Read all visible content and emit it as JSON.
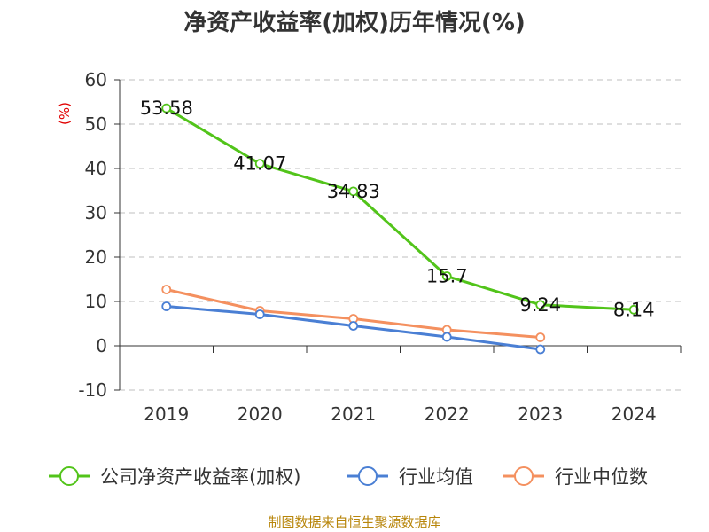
{
  "chart_data": {
    "type": "line",
    "title": "净资产收益率(加权)历年情况(%)",
    "ylabel": "(%)",
    "xlabel": "",
    "categories": [
      "2019",
      "2020",
      "2021",
      "2022",
      "2023",
      "2024"
    ],
    "ylim": [
      -10,
      60
    ],
    "yticks": [
      -10,
      0,
      10,
      20,
      30,
      40,
      50,
      60
    ],
    "grid": true,
    "legend_position": "bottom",
    "series": [
      {
        "name": "公司净资产收益率(加权)",
        "color": "#52c41a",
        "values": [
          53.58,
          41.07,
          34.83,
          15.7,
          9.24,
          8.14
        ],
        "labels": [
          "53.58",
          "41.07",
          "34.83",
          "15.7",
          "9.24",
          "8.14"
        ]
      },
      {
        "name": "行业均值",
        "color": "#4a7fd4",
        "values": [
          8.9,
          7.1,
          4.5,
          2.0,
          -0.8,
          null
        ]
      },
      {
        "name": "行业中位数",
        "color": "#f4905f",
        "values": [
          12.7,
          7.9,
          6.1,
          3.6,
          1.9,
          null
        ]
      }
    ]
  },
  "footer": {
    "source": "制图数据来自恒生聚源数据库"
  }
}
